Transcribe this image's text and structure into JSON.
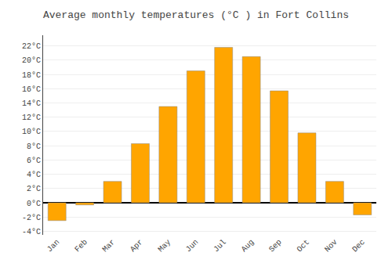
{
  "chart_data": {
    "type": "bar",
    "title": "Average monthly temperatures (°C ) in Fort Collins",
    "categories": [
      "Jan",
      "Feb",
      "Mar",
      "Apr",
      "May",
      "Jun",
      "Jul",
      "Aug",
      "Sep",
      "Oct",
      "Nov",
      "Dec"
    ],
    "values": [
      -2.5,
      -0.3,
      3.0,
      8.3,
      13.5,
      18.5,
      21.8,
      20.5,
      15.7,
      9.8,
      3.0,
      -1.7
    ],
    "color": "#FFA500",
    "ylim": [
      -4.5,
      23.5
    ],
    "yticks": [
      {
        "value": -4,
        "label": "-4°C"
      },
      {
        "value": -2,
        "label": "-2°C"
      },
      {
        "value": 0,
        "label": "0°C"
      },
      {
        "value": 2,
        "label": "2°C"
      },
      {
        "value": 4,
        "label": "4°C"
      },
      {
        "value": 6,
        "label": "6°C"
      },
      {
        "value": 8,
        "label": "8°C"
      },
      {
        "value": 10,
        "label": "10°C"
      },
      {
        "value": 12,
        "label": "12°C"
      },
      {
        "value": 14,
        "label": "14°C"
      },
      {
        "value": 16,
        "label": "16°C"
      },
      {
        "value": 18,
        "label": "18°C"
      },
      {
        "value": 20,
        "label": "20°C"
      },
      {
        "value": 22,
        "label": "22°C"
      }
    ],
    "grid": true
  }
}
